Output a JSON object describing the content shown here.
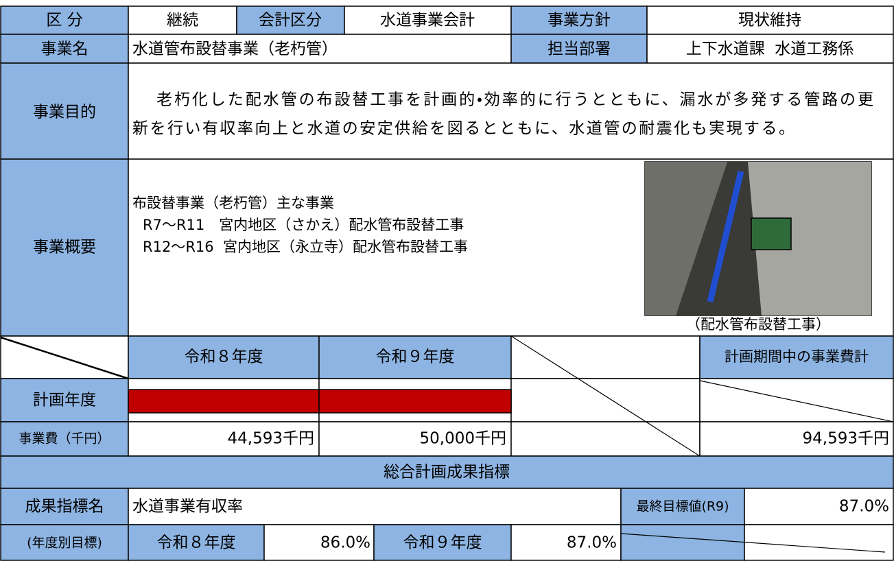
{
  "row1": {
    "classification_label": "区 分",
    "classification": "継続",
    "account_label": "会計区分",
    "account": "水道事業会計",
    "policy_label": "事業方針",
    "policy": "現状維持"
  },
  "row2": {
    "name_label": "事業名",
    "name": "水道管布設替事業（老朽管）",
    "department_label": "担当部署",
    "department": "上下水道課  水道工務係"
  },
  "purpose": {
    "label": "事業目的",
    "lines": [
      "老朽化した配水管の布設替工事を計画的・効率的に行うとともに、漏水が多発する管路の更",
      "新を行い有収率向上と水道の安定供給を図るとともに、水道管の耐震化も実現する。"
    ]
  },
  "summary": {
    "label": "事業概要",
    "lines": [
      "布設替事業（老朽管）主な事業",
      "R7～R11　宮内地区（さかえ）配水管布設替工事",
      "R12～R16  宮内地区（永立寺）配水管布設替工事"
    ],
    "photo_caption": "（配水管布設替工事）"
  },
  "schedule": {
    "years": [
      "令和８年度",
      "令和９年度"
    ],
    "total_label": "計画期間中の事業費計",
    "plan_label": "計画年度",
    "cost_label": "事業費（千円）",
    "costs": [
      "44,593千円",
      "50,000千円"
    ],
    "total": "94,593千円"
  },
  "indicator": {
    "section_title": "総合計画成果指標",
    "name_label": "成果指標名",
    "name": "水道事業有収率",
    "final_label": "最終目標値(R9)",
    "final_value": "87.0%",
    "yearly_label": "(年度別目標)",
    "years": [
      "令和８年度",
      "令和９年度"
    ],
    "targets": [
      "86.0%",
      "87.0%"
    ]
  }
}
